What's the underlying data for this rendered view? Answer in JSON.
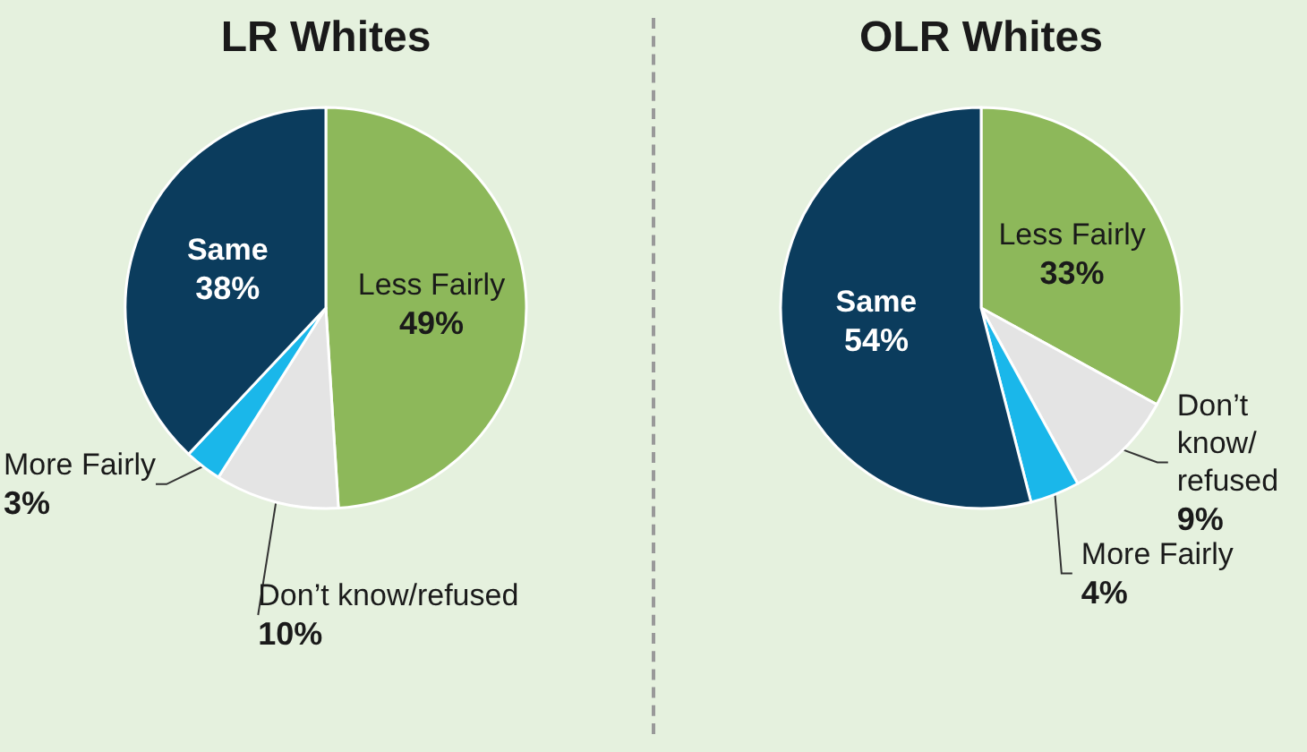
{
  "chart_data": [
    {
      "type": "pie",
      "title": "LR Whites",
      "categories": [
        "Less Fairly",
        "Don’t know/refused",
        "More Fairly",
        "Same"
      ],
      "values": [
        49,
        10,
        3,
        38
      ],
      "value_labels": [
        "49%",
        "10%",
        "3%",
        "38%"
      ],
      "colors": [
        "#8db85a",
        "#e4e4e4",
        "#1ab7ea",
        "#0b3c5d"
      ]
    },
    {
      "type": "pie",
      "title": "OLR Whites",
      "categories": [
        "Less Fairly",
        "Don’t\nknow/\nrefused",
        "More Fairly",
        "Same"
      ],
      "values": [
        33,
        9,
        4,
        54
      ],
      "value_labels": [
        "33%",
        "9%",
        "4%",
        "54%"
      ],
      "colors": [
        "#8db85a",
        "#e4e4e4",
        "#1ab7ea",
        "#0b3c5d"
      ]
    }
  ]
}
